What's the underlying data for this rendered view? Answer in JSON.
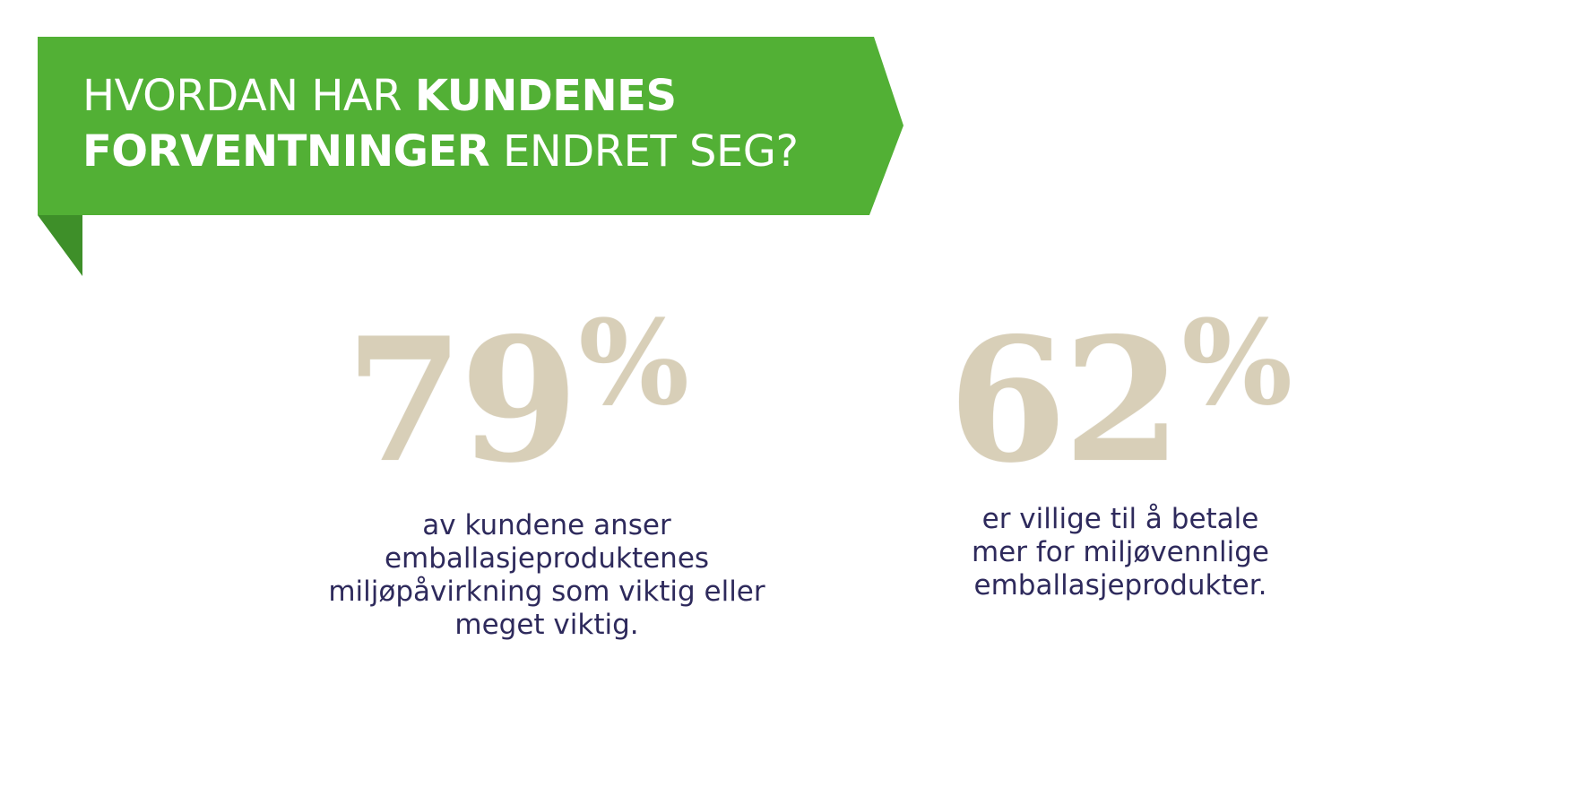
{
  "headline": {
    "line1_light": "HVORDAN HAR ",
    "line1_bold": "KUNDENES",
    "line2_bold": "FORVENTNINGER",
    "line2_light": " ENDRET SEG?"
  },
  "colors": {
    "banner_green": "#52b035",
    "banner_fold": "#3e8f29",
    "stat_number": "#d8cfb8",
    "description_text": "#2e2a5c"
  },
  "stats": [
    {
      "value": "79",
      "unit": "%",
      "description_lines": [
        "av kundene anser",
        "emballasjeproduktenes",
        "miljøpåvirkning som viktig eller",
        "meget viktig."
      ]
    },
    {
      "value": "62",
      "unit": "%",
      "description_lines": [
        "er villige til å betale",
        "mer for miljøvennlige",
        "emballasjeprodukter."
      ]
    }
  ]
}
